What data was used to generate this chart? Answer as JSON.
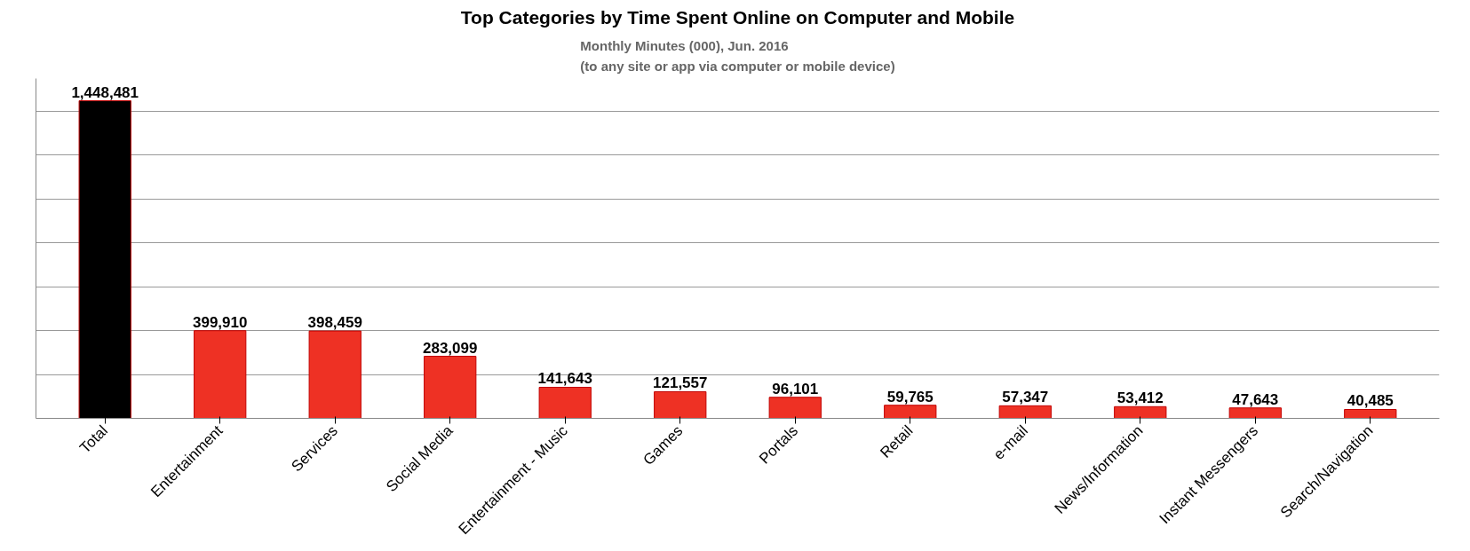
{
  "chart_data": {
    "type": "bar",
    "title": "Top Categories by Time Spent Online on Computer and Mobile",
    "subtitle": "Monthly Minutes (000), Jun. 2016\n(to any site or app via computer or mobile device)",
    "categories": [
      "Total",
      "Entertainment",
      "Services",
      "Social Media",
      "Entertainment - Music",
      "Games",
      "Portals",
      "Retail",
      "e-mail",
      "News/Information",
      "Instant Messengers",
      "Search/Navigation"
    ],
    "values": [
      1448481,
      399910,
      398459,
      283099,
      141643,
      121557,
      96101,
      59765,
      57347,
      53412,
      47643,
      40485
    ],
    "value_labels": [
      "1,448,481",
      "399,910",
      "398,459",
      "283,099",
      "141,643",
      "121,557",
      "96,101",
      "59,765",
      "57,347",
      "53,412",
      "47,643",
      "40,485"
    ],
    "colors": [
      "#000000",
      "#ee3124",
      "#ee3124",
      "#ee3124",
      "#ee3124",
      "#ee3124",
      "#ee3124",
      "#ee3124",
      "#ee3124",
      "#ee3124",
      "#ee3124",
      "#ee3124"
    ],
    "grid": "y",
    "tick_labels": "x"
  }
}
